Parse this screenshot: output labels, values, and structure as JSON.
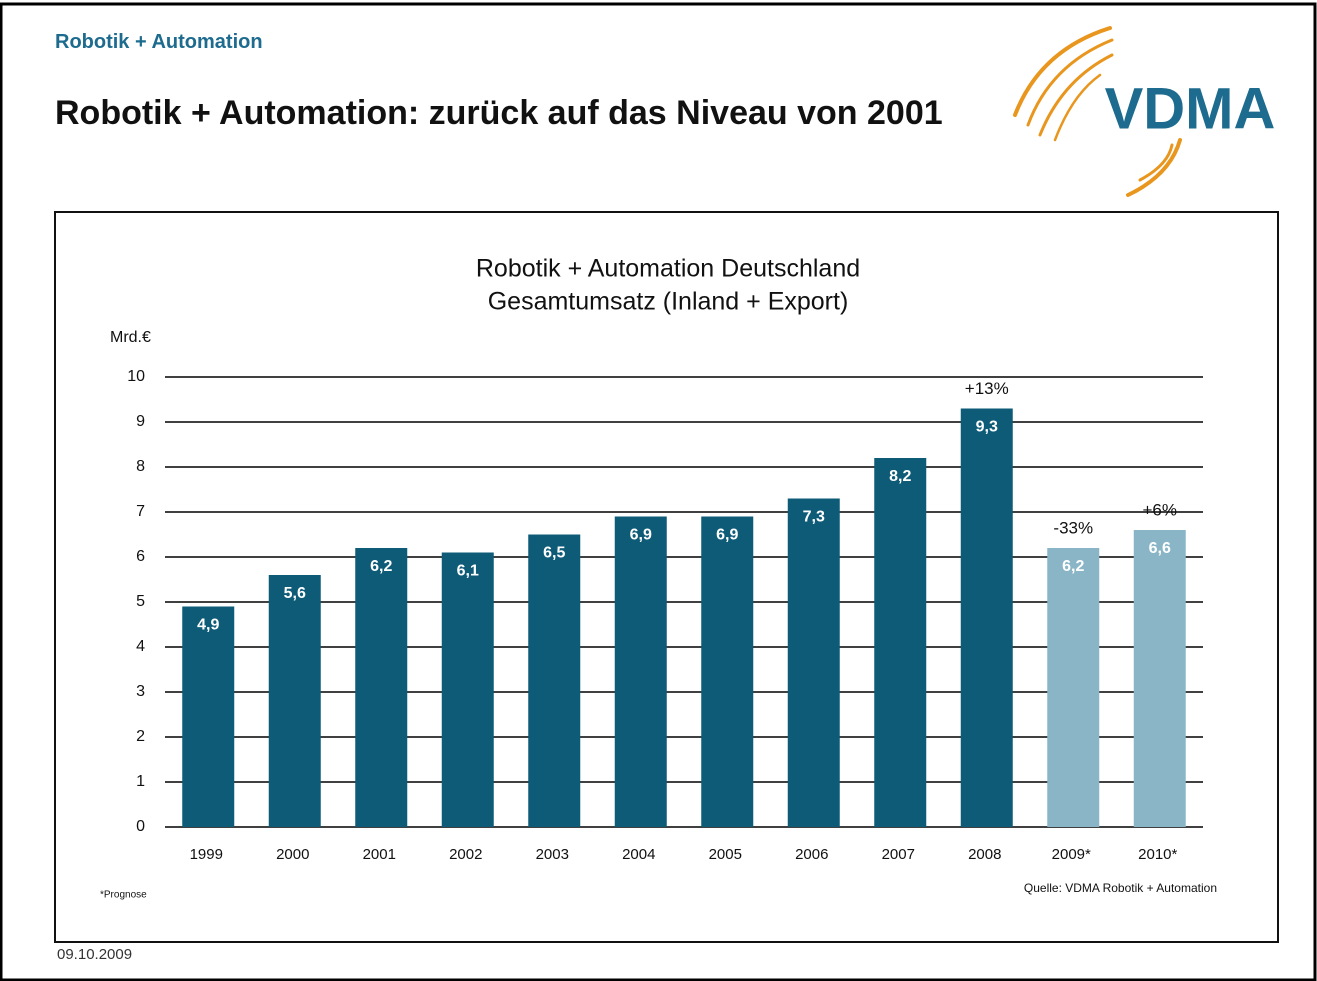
{
  "header": "Robotik + Automation",
  "slide_title": "Robotik + Automation: zurück auf das Niveau von 2001",
  "logo": "VDMA",
  "date": "09.10.2009",
  "chart_data": {
    "type": "bar",
    "title": "Robotik + Automation Deutschland",
    "subtitle": "Gesamtumsatz (Inland + Export)",
    "y_label": "Mrd.€",
    "categories": [
      "1999",
      "2000",
      "2001",
      "2002",
      "2003",
      "2004",
      "2005",
      "2006",
      "2007",
      "2008",
      "2009*",
      "2010*"
    ],
    "values": [
      4.9,
      5.6,
      6.2,
      6.1,
      6.5,
      6.9,
      6.9,
      7.3,
      8.2,
      9.3,
      6.2,
      6.6
    ],
    "value_labels": [
      "4,9",
      "5,6",
      "6,2",
      "6,1",
      "6,5",
      "6,9",
      "6,9",
      "7,3",
      "8,2",
      "9,3",
      "6,2",
      "6,6"
    ],
    "colors": [
      "#0e5b78",
      "#0e5b78",
      "#0e5b78",
      "#0e5b78",
      "#0e5b78",
      "#0e5b78",
      "#0e5b78",
      "#0e5b78",
      "#0e5b78",
      "#0e5b78",
      "#8ab5c7",
      "#8ab5c7"
    ],
    "annotations": [
      null,
      null,
      null,
      null,
      null,
      null,
      null,
      null,
      null,
      "+13%",
      "-33%",
      "+6%"
    ],
    "ylim": [
      0,
      10
    ],
    "yticks": [
      0,
      1,
      2,
      3,
      4,
      5,
      6,
      7,
      8,
      9,
      10
    ],
    "grid": true,
    "footnote": "*Prognose",
    "source": "Quelle: VDMA Robotik + Automation"
  }
}
